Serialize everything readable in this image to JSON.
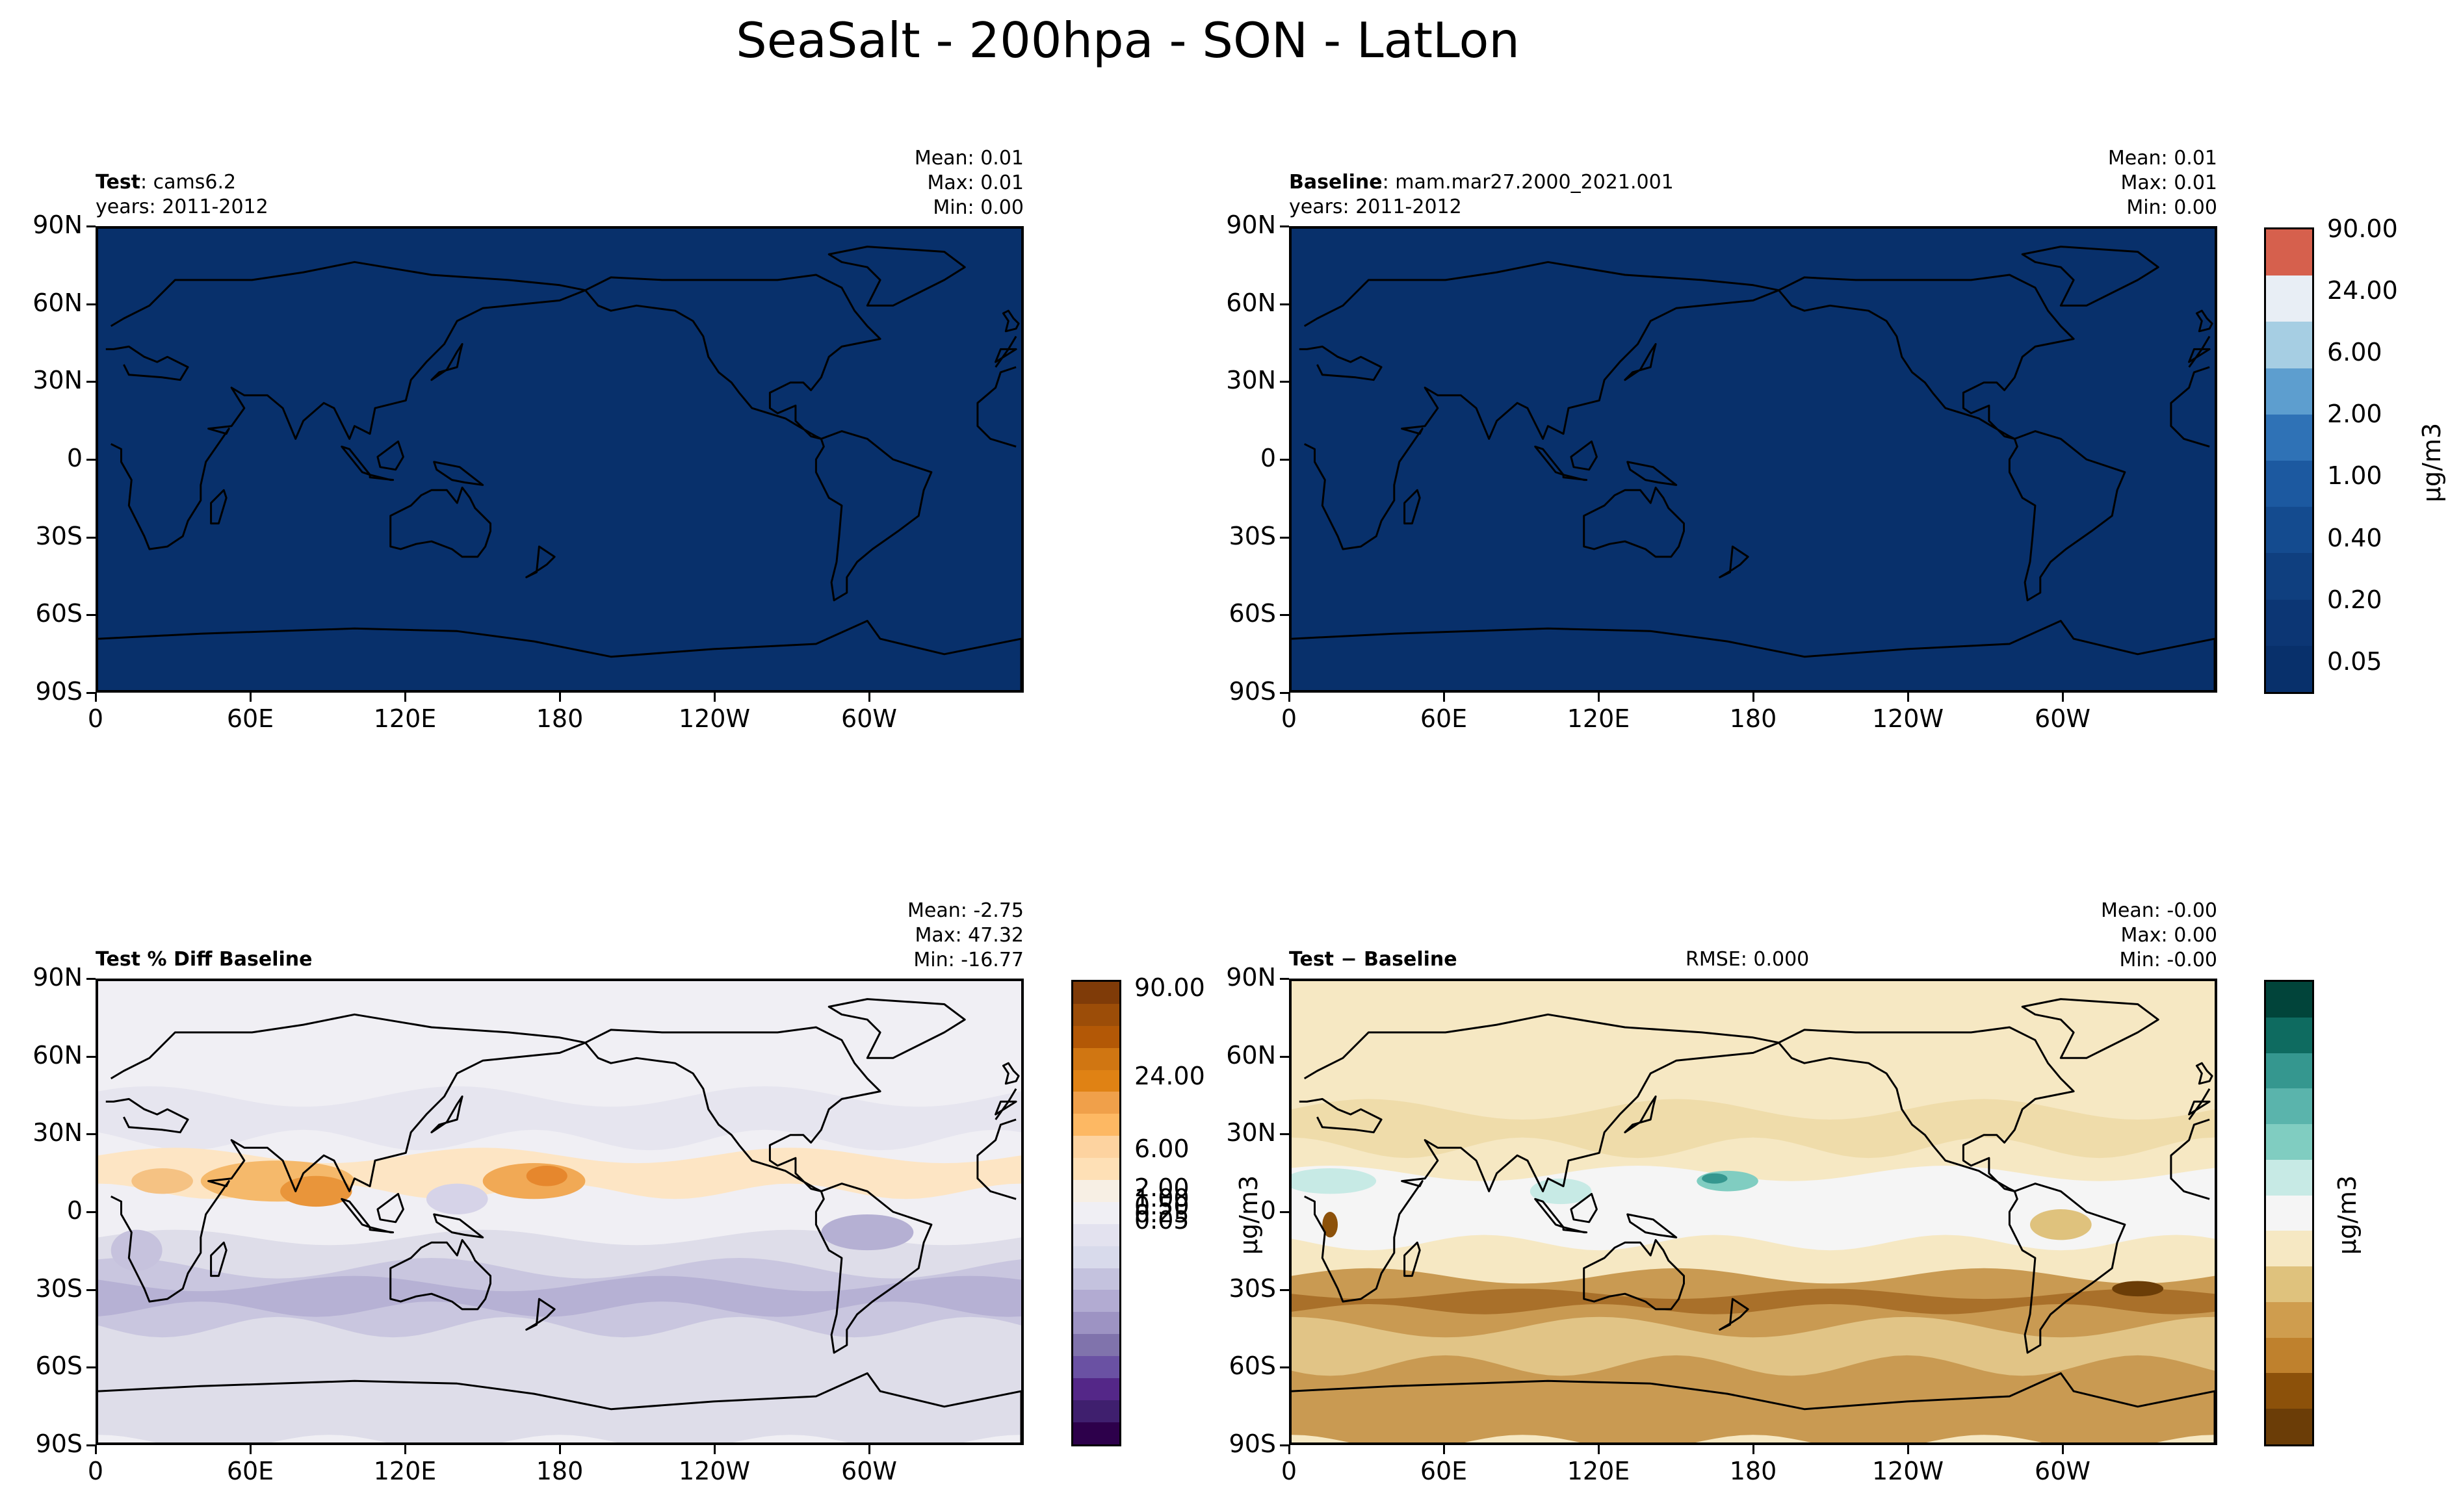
{
  "title": "SeaSalt - 200hpa - SON - LatLon",
  "lat_ticks": [
    "90N",
    "60N",
    "30N",
    "0",
    "30S",
    "60S",
    "90S"
  ],
  "lon_ticks": [
    "0",
    "60E",
    "120E",
    "180",
    "120W",
    "60W"
  ],
  "colors": {
    "test_fill": "#08306b",
    "pct_base": "#f0eff4",
    "diff_base": "#f6e8c3"
  },
  "panels": {
    "test": {
      "label_bold": "Test",
      "label_rest": ": cams6.2",
      "years": "years: 2011-2012",
      "mean": "Mean:  0.01",
      "max": "Max:  0.01",
      "min": "Min:  0.00"
    },
    "baseline": {
      "label_bold": "Baseline",
      "label_rest": ": mam.mar27.2000_2021.001",
      "years": "years: 2011-2012",
      "mean": "Mean:  0.01",
      "max": "Max:  0.01",
      "min": "Min:  0.00"
    },
    "pctdiff": {
      "label_bold": "Test % Diff Baseline",
      "mean": "Mean: -2.75",
      "max": "Max: 47.32",
      "min": "Min: -16.77"
    },
    "diff": {
      "label_bold": "Test − Baseline",
      "rmse": "RMSE: 0.000",
      "mean": "Mean: -0.00",
      "max": "Max:  0.00",
      "min": "Min: -0.00"
    }
  },
  "colorbars": {
    "main": {
      "unit": "μg/m3",
      "labels": [
        "90.00",
        "24.00",
        "6.00",
        "2.00",
        "1.00",
        "0.40",
        "0.20",
        "0.05"
      ],
      "colors": [
        "#d6604d",
        "#e8eef5",
        "#a6cee3",
        "#5d9ecf",
        "#2f72b6",
        "#1c59a0",
        "#144b8f",
        "#0f3f7f",
        "#0c3674",
        "#08306b"
      ]
    },
    "pct": {
      "unit": "μg/m3",
      "labels": [
        "90.00",
        "24.00",
        "6.00",
        "2.00",
        "1.00",
        "0.50",
        "0.25",
        "0.05"
      ],
      "colors": [
        "#7f3b08",
        "#9c4d08",
        "#b35806",
        "#d07612",
        "#e08214",
        "#f0a04a",
        "#fdb863",
        "#fdd3a0",
        "#fee0b6",
        "#f7efe4",
        "#f0eff4",
        "#e3e2ef",
        "#d8daeb",
        "#c4c2de",
        "#b2abd2",
        "#9d93c3",
        "#8073ac",
        "#6a51a3",
        "#542788",
        "#3f1f6e",
        "#2d004b"
      ]
    },
    "diff": {
      "unit": "μg/m3",
      "colors": [
        "#01443a",
        "#0e6b60",
        "#35978f",
        "#5ab4ac",
        "#80cdc1",
        "#c7eae5",
        "#f5f5f5",
        "#f6e8c3",
        "#dfc27d",
        "#cf9d4e",
        "#bf812d",
        "#8c510a",
        "#6b3d07"
      ]
    }
  }
}
